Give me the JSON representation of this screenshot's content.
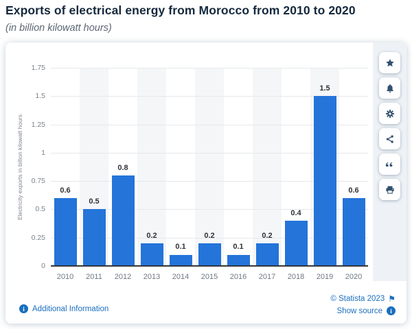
{
  "header": {
    "title": "Exports of electrical energy from Morocco from 2010 to 2020",
    "subtitle": "(in billion kilowatt hours)"
  },
  "chart_data": {
    "type": "bar",
    "categories": [
      "2010",
      "2011",
      "2012",
      "2013",
      "2014",
      "2015",
      "2016",
      "2017",
      "2018",
      "2019",
      "2020"
    ],
    "values": [
      0.6,
      0.5,
      0.8,
      0.2,
      0.1,
      0.2,
      0.1,
      0.2,
      0.4,
      1.5,
      0.6
    ],
    "title": "Exports of electrical energy from Morocco from 2010 to 2020",
    "subtitle": "(in billion kilowatt hours)",
    "xlabel": "",
    "ylabel": "Electricity exports in billion kilowatt hours",
    "ylim": [
      0,
      1.75
    ],
    "yticks": [
      0,
      0.25,
      0.5,
      0.75,
      1,
      1.25,
      1.5,
      1.75
    ],
    "grid": true,
    "legend": "none",
    "bar_color": "#2474d9",
    "alt_band_color": "#f5f6f8",
    "data_labels_shown": true
  },
  "toolbar": {
    "icons": [
      {
        "name": "star"
      },
      {
        "name": "bell"
      },
      {
        "name": "gear"
      },
      {
        "name": "share"
      },
      {
        "name": "quote"
      },
      {
        "name": "print"
      }
    ]
  },
  "footer": {
    "additional_info": "Additional Information",
    "copyright": "© Statista 2023",
    "show_source": "Show source"
  }
}
